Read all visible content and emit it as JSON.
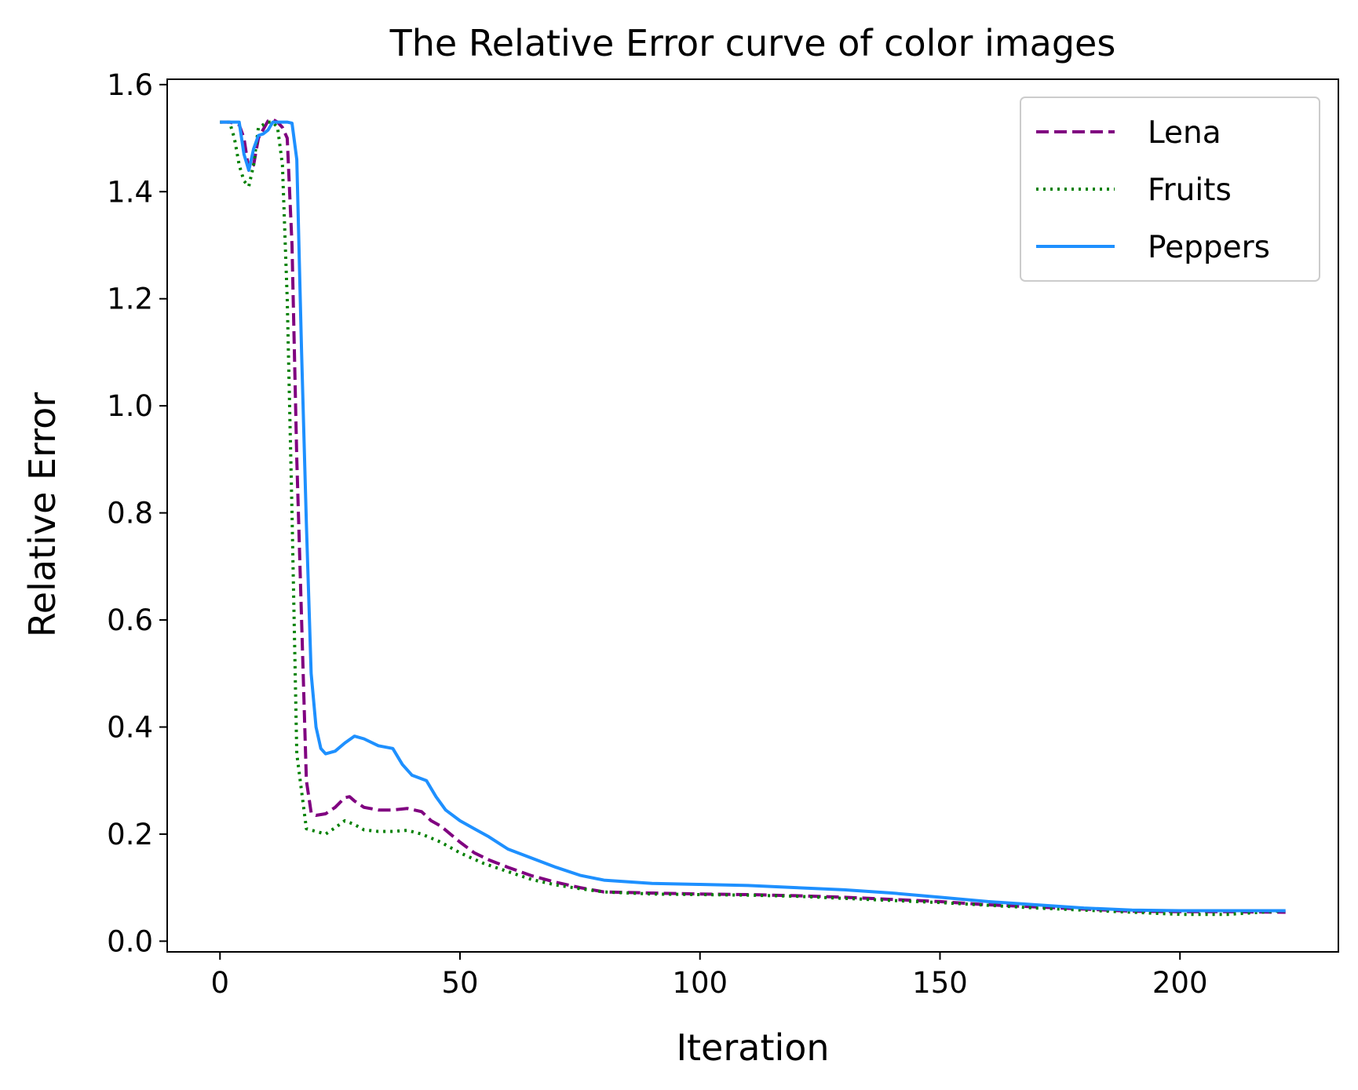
{
  "chart_data": {
    "type": "line",
    "title": "The Relative Error curve of color images",
    "xlabel": "Iteration",
    "ylabel": "Relative Error",
    "xlim": [
      -11,
      233
    ],
    "ylim": [
      -0.02,
      1.61
    ],
    "xticks": [
      0,
      50,
      100,
      150,
      200
    ],
    "xtick_labels": [
      "0",
      "50",
      "100",
      "150",
      "200"
    ],
    "yticks": [
      0.0,
      0.2,
      0.4,
      0.6,
      0.8,
      1.0,
      1.2,
      1.4,
      1.6
    ],
    "ytick_labels": [
      "0.0",
      "0.2",
      "0.4",
      "0.6",
      "0.8",
      "1.0",
      "1.2",
      "1.4",
      "1.6"
    ],
    "grid": false,
    "legend_position": "top-right",
    "series": [
      {
        "name": "Lena",
        "color": "#800080",
        "style": "dashed",
        "x": [
          0,
          2,
          4,
          5,
          6,
          7,
          8,
          10,
          11,
          12,
          13,
          14,
          15,
          16,
          17,
          18,
          19,
          20,
          22,
          24,
          26,
          27,
          28,
          30,
          33,
          36,
          39,
          42,
          44,
          46,
          48,
          50,
          53,
          56,
          60,
          65,
          70,
          75,
          80,
          90,
          100,
          110,
          120,
          130,
          140,
          150,
          160,
          170,
          180,
          190,
          200,
          210,
          222
        ],
        "y": [
          1.53,
          1.53,
          1.525,
          1.5,
          1.44,
          1.45,
          1.5,
          1.532,
          1.535,
          1.53,
          1.52,
          1.5,
          1.3,
          0.9,
          0.6,
          0.3,
          0.24,
          0.235,
          0.238,
          0.25,
          0.268,
          0.27,
          0.262,
          0.25,
          0.245,
          0.245,
          0.248,
          0.242,
          0.225,
          0.215,
          0.2,
          0.185,
          0.165,
          0.152,
          0.138,
          0.122,
          0.11,
          0.1,
          0.092,
          0.09,
          0.088,
          0.087,
          0.085,
          0.082,
          0.078,
          0.074,
          0.068,
          0.064,
          0.06,
          0.056,
          0.055,
          0.055,
          0.054
        ]
      },
      {
        "name": "Fruits",
        "color": "#008000",
        "style": "dotted",
        "x": [
          0,
          2,
          3,
          4,
          5,
          6,
          7,
          8,
          10,
          11,
          12,
          13,
          14,
          15,
          16,
          18,
          20,
          22,
          24,
          26,
          28,
          30,
          33,
          36,
          39,
          42,
          46,
          50,
          55,
          60,
          65,
          70,
          75,
          80,
          90,
          100,
          110,
          120,
          130,
          140,
          150,
          160,
          170,
          180,
          190,
          200,
          210,
          222
        ],
        "y": [
          1.53,
          1.53,
          1.5,
          1.45,
          1.42,
          1.41,
          1.45,
          1.52,
          1.53,
          1.53,
          1.52,
          1.45,
          1.2,
          0.8,
          0.35,
          0.21,
          0.205,
          0.2,
          0.212,
          0.225,
          0.218,
          0.208,
          0.205,
          0.205,
          0.207,
          0.2,
          0.185,
          0.165,
          0.145,
          0.13,
          0.115,
          0.105,
          0.098,
          0.092,
          0.088,
          0.087,
          0.086,
          0.084,
          0.08,
          0.076,
          0.072,
          0.067,
          0.062,
          0.058,
          0.054,
          0.05,
          0.05,
          0.057
        ]
      },
      {
        "name": "Peppers",
        "color": "#1e90ff",
        "style": "solid",
        "x": [
          0,
          2,
          4,
          5,
          6,
          7,
          8,
          9,
          10,
          11,
          12,
          13,
          14,
          15,
          16,
          17,
          18,
          19,
          20,
          21,
          22,
          24,
          26,
          28,
          30,
          33,
          36,
          38,
          40,
          43,
          45,
          47,
          50,
          53,
          56,
          60,
          65,
          70,
          75,
          80,
          90,
          100,
          110,
          120,
          130,
          140,
          150,
          160,
          170,
          180,
          190,
          200,
          210,
          222
        ],
        "y": [
          1.53,
          1.53,
          1.53,
          1.47,
          1.44,
          1.48,
          1.505,
          1.508,
          1.515,
          1.53,
          1.53,
          1.53,
          1.53,
          1.528,
          1.46,
          1.1,
          0.78,
          0.5,
          0.4,
          0.36,
          0.35,
          0.355,
          0.37,
          0.383,
          0.378,
          0.365,
          0.36,
          0.33,
          0.31,
          0.3,
          0.27,
          0.245,
          0.225,
          0.21,
          0.195,
          0.172,
          0.155,
          0.138,
          0.123,
          0.114,
          0.108,
          0.106,
          0.104,
          0.1,
          0.096,
          0.09,
          0.082,
          0.074,
          0.068,
          0.062,
          0.058,
          0.057,
          0.057,
          0.057
        ]
      }
    ]
  }
}
